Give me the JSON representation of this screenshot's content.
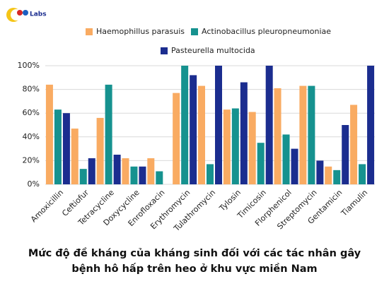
{
  "logo": "Labs",
  "chart_data": {
    "type": "bar",
    "title": "Mức độ đề kháng của kháng sinh đối với các tác nhân gây bệnh hô hấp trên heo ở khu vực miền Nam",
    "categories": [
      "Amoxicillin",
      "Ceftiofur",
      "Tetracycline",
      "Doxycycline",
      "Enrofloxacin",
      "Erythromycin",
      "Tulathromycin",
      "Tylosin",
      "Timicosin",
      "Florphenicol",
      "Streptomycin",
      "Gentamicin",
      "Tiamulin"
    ],
    "series": [
      {
        "name": "Haemophillus parasuis",
        "color": "#f9ab62",
        "values": [
          84,
          47,
          56,
          22,
          22,
          77,
          83,
          63,
          61,
          81,
          83,
          15,
          67
        ]
      },
      {
        "name": "Actinobacillus pleuropneumoniae",
        "color": "#16928f",
        "values": [
          63,
          13,
          84,
          15,
          11,
          100,
          17,
          64,
          35,
          42,
          83,
          12,
          17
        ]
      },
      {
        "name": "Pasteurella multocida",
        "color": "#1b2d8f",
        "values": [
          60,
          22,
          25,
          15,
          0,
          92,
          100,
          86,
          100,
          30,
          20,
          50,
          100
        ]
      }
    ],
    "ylim": [
      0,
      100
    ],
    "yticks": [
      {
        "value": 0,
        "label": "0%"
      },
      {
        "value": 20,
        "label": "20%"
      },
      {
        "value": 40,
        "label": "40%"
      },
      {
        "value": 60,
        "label": "60%"
      },
      {
        "value": 80,
        "label": "80%"
      },
      {
        "value": 100,
        "label": "100%"
      }
    ],
    "grid": true
  }
}
